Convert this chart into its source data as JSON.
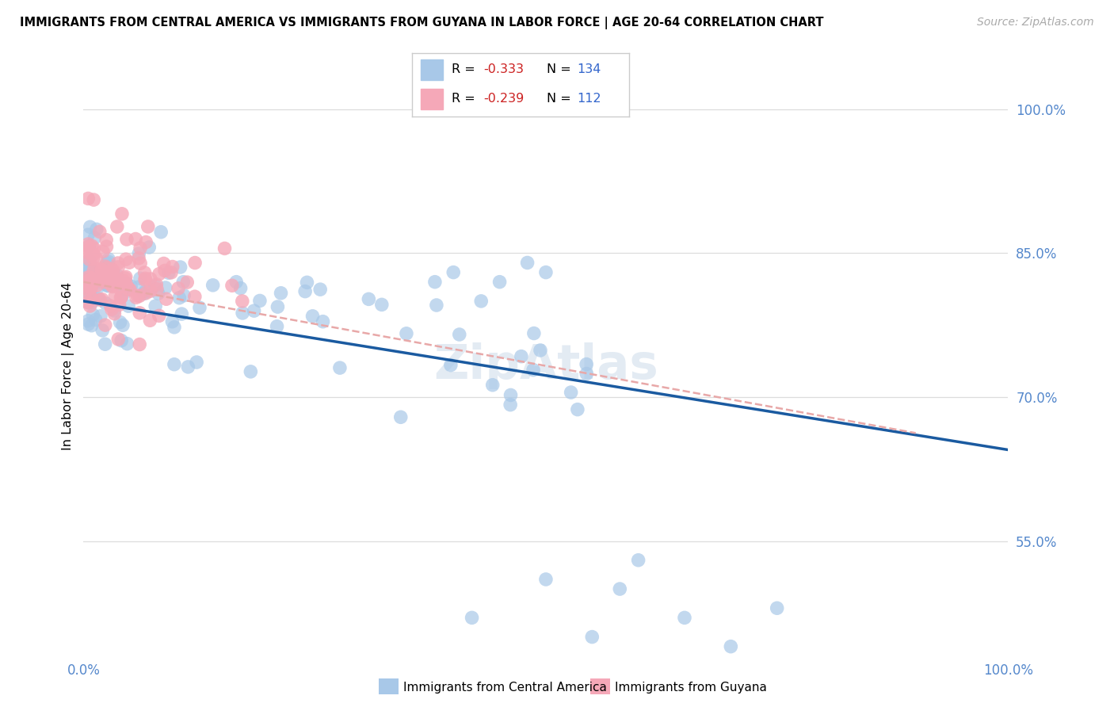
{
  "title": "IMMIGRANTS FROM CENTRAL AMERICA VS IMMIGRANTS FROM GUYANA IN LABOR FORCE | AGE 20-64 CORRELATION CHART",
  "source": "Source: ZipAtlas.com",
  "ylabel": "In Labor Force | Age 20-64",
  "xlim": [
    0.0,
    1.0
  ],
  "ylim": [
    0.43,
    1.035
  ],
  "ytick_positions": [
    0.55,
    0.7,
    0.85,
    1.0
  ],
  "ytick_labels": [
    "55.0%",
    "70.0%",
    "85.0%",
    "100.0%"
  ],
  "color_blue": "#a8c8e8",
  "color_pink": "#f5a8b8",
  "trendline_blue": "#1a5aa0",
  "trendline_pink": "#e8a8a8",
  "tick_color": "#5588cc",
  "r_color": "#cc2222",
  "n_color": "#3366cc",
  "legend_r1": "-0.333",
  "legend_n1": "134",
  "legend_r2": "-0.239",
  "legend_n2": "112",
  "bottom_legend_blue": "Immigrants from Central America",
  "bottom_legend_pink": "Immigrants from Guyana",
  "watermark": "ZipAtlas"
}
